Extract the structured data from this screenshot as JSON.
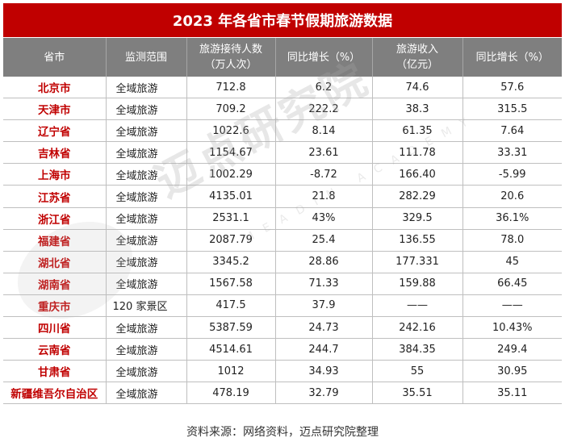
{
  "title": "2023 年各省市春节假期旅游数据",
  "table": {
    "headers": [
      {
        "line1": "省市",
        "line2": ""
      },
      {
        "line1": "监测范围",
        "line2": ""
      },
      {
        "line1": "旅游接待人数",
        "line2": "（万人次）"
      },
      {
        "line1": "同比增长（%）",
        "line2": ""
      },
      {
        "line1": "旅游收入",
        "line2": "（亿元）"
      },
      {
        "line1": "同比增长（%）",
        "line2": ""
      }
    ],
    "rows": [
      [
        "北京市",
        "全域旅游",
        "712.8",
        "6.2",
        "74.6",
        "57.6"
      ],
      [
        "天津市",
        "全域旅游",
        "709.2",
        "222.2",
        "38.3",
        "315.5"
      ],
      [
        "辽宁省",
        "全域旅游",
        "1022.6",
        "8.14",
        "61.35",
        "7.64"
      ],
      [
        "吉林省",
        "全域旅游",
        "1154.67",
        "23.61",
        "111.78",
        "33.31"
      ],
      [
        "上海市",
        "全域旅游",
        "1002.29",
        "-8.72",
        "166.40",
        "-5.99"
      ],
      [
        "江苏省",
        "全域旅游",
        "4135.01",
        "21.8",
        "282.29",
        "20.6"
      ],
      [
        "浙江省",
        "全域旅游",
        "2531.1",
        "43%",
        "329.5",
        "36.1%"
      ],
      [
        "福建省",
        "全域旅游",
        "2087.79",
        "25.4",
        "136.55",
        "78.0"
      ],
      [
        "湖北省",
        "全域旅游",
        "3345.2",
        "28.86",
        "177.331",
        "45"
      ],
      [
        "湖南省",
        "全域旅游",
        "1567.58",
        "71.33",
        "159.88",
        "66.45"
      ],
      [
        "重庆市",
        "120 家景区",
        "417.5",
        "37.9",
        "——",
        "——"
      ],
      [
        "四川省",
        "全域旅游",
        "5387.59",
        "24.73",
        "242.16",
        "10.43%"
      ],
      [
        "云南省",
        "全域旅游",
        "4514.61",
        "244.7",
        "384.35",
        "249.4"
      ],
      [
        "甘肃省",
        "全域旅游",
        "1012",
        "34.93",
        "55",
        "30.95"
      ],
      [
        "新疆维吾尔自治区",
        "全域旅游",
        "478.19",
        "32.79",
        "35.51",
        "35.11"
      ]
    ]
  },
  "watermark": {
    "text": "迈点研究院",
    "subtext": "MEADIN ACADEMY"
  },
  "footer": "资料来源：网络资料，迈点研究院整理",
  "colors": {
    "title_bg": "#c00000",
    "header_bg": "#7f7f7f",
    "province_text": "#c00000"
  }
}
